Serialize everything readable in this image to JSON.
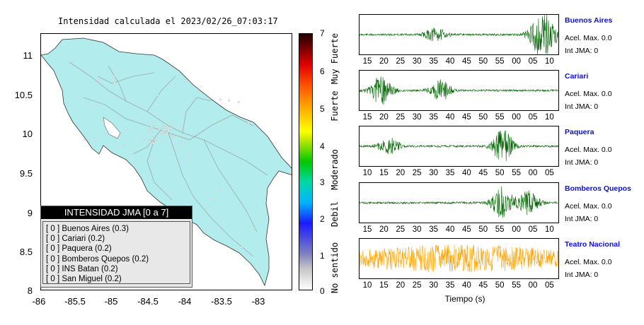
{
  "map": {
    "title": "Intensidad calculada el 2023/02/26_07:03:17",
    "lat_ticks": [
      "11",
      "10.5",
      "10",
      "9.5",
      "9",
      "8.5",
      "8"
    ],
    "lon_ticks": [
      "-86",
      "-85.5",
      "-85",
      "-84.5",
      "-84",
      "-83.5",
      "-83"
    ],
    "land_color": "#b3ecec",
    "legend": {
      "title": "INTENSIDAD JMA [0 a 7]",
      "rows": [
        "[ 0 ]  Buenos Aires (0.3)",
        "[ 0 ]  Cariari (0.2)",
        "[ 0 ]  Paquera (0.2)",
        "[ 0 ]  Bomberos Quepos (0.2)",
        "[ 0 ]  INS Batan (0.2)",
        "[ 0 ]  San Miguel (0.2)"
      ]
    }
  },
  "colorbar": {
    "ticks": [
      "7",
      "6",
      "5",
      "4",
      "3",
      "2",
      "1",
      "0"
    ],
    "labels": [
      "Muy Fuerte",
      "Fuerte",
      "Moderado",
      "Debil",
      "No sentido"
    ]
  },
  "waveforms": {
    "xlabel": "Tiempo (s)",
    "stations": [
      {
        "name": "Buenos Aires",
        "acel": "Acel. Max. 0.0",
        "jma": "Int JMA: 0",
        "color": "#006400",
        "ticks": [
          "15",
          "20",
          "25",
          "30",
          "35",
          "40",
          "45",
          "50",
          "55",
          "00",
          "05",
          "10"
        ]
      },
      {
        "name": "Cariari",
        "acel": "Acel. Max. 0.0",
        "jma": "Int JMA: 0",
        "color": "#006400",
        "ticks": [
          "15",
          "20",
          "25",
          "30",
          "35",
          "40",
          "45",
          "50",
          "55",
          "00",
          "05",
          "10"
        ]
      },
      {
        "name": "Paquera",
        "acel": "Acel. Max. 0.0",
        "jma": "Int JMA: 0",
        "color": "#006400",
        "ticks": [
          "10",
          "15",
          "20",
          "25",
          "30",
          "35",
          "40",
          "45",
          "50",
          "55",
          "00",
          "05"
        ]
      },
      {
        "name": "Bomberos Quepos",
        "acel": "Acel. Max. 0.0",
        "jma": "Int JMA: 0",
        "color": "#006400",
        "ticks": [
          "15",
          "20",
          "25",
          "30",
          "35",
          "40",
          "45",
          "50",
          "55",
          "00",
          "05",
          "10"
        ]
      },
      {
        "name": "Teatro Nacional",
        "acel": "Acel. Max. 0.0",
        "jma": "Int JMA: 0",
        "color": "#ffa500",
        "ticks": [
          "10",
          "15",
          "20",
          "25",
          "30",
          "35",
          "40",
          "45",
          "50",
          "55",
          "00",
          "05"
        ]
      }
    ]
  },
  "chart_data": [
    {
      "type": "map",
      "title": "Intensidad calculada el 2023/02/26_07:03:17",
      "ylim": [
        8,
        11.25
      ],
      "xlim": [
        -86,
        -82.6
      ],
      "legend_title": "INTENSIDAD JMA [0 a 7]",
      "stations": [
        {
          "name": "Buenos Aires",
          "jma": 0,
          "value": 0.3
        },
        {
          "name": "Cariari",
          "jma": 0,
          "value": 0.2
        },
        {
          "name": "Paquera",
          "jma": 0,
          "value": 0.2
        },
        {
          "name": "Bomberos Quepos",
          "jma": 0,
          "value": 0.2
        },
        {
          "name": "INS Batan",
          "jma": 0,
          "value": 0.2
        },
        {
          "name": "San Miguel",
          "jma": 0,
          "value": 0.2
        }
      ]
    },
    {
      "type": "heatmap",
      "scale": "JMA intensity",
      "range": [
        0,
        7
      ],
      "labels": [
        "Muy Fuerte",
        "Fuerte",
        "Moderado",
        "Debil",
        "No sentido"
      ]
    },
    {
      "type": "line",
      "xlabel": "Tiempo (s)",
      "series": [
        {
          "name": "Buenos Aires",
          "acel_max": 0.0,
          "int_jma": 0
        },
        {
          "name": "Cariari",
          "acel_max": 0.0,
          "int_jma": 0
        },
        {
          "name": "Paquera",
          "acel_max": 0.0,
          "int_jma": 0
        },
        {
          "name": "Bomberos Quepos",
          "acel_max": 0.0,
          "int_jma": 0
        },
        {
          "name": "Teatro Nacional",
          "acel_max": 0.0,
          "int_jma": 0
        }
      ]
    }
  ]
}
